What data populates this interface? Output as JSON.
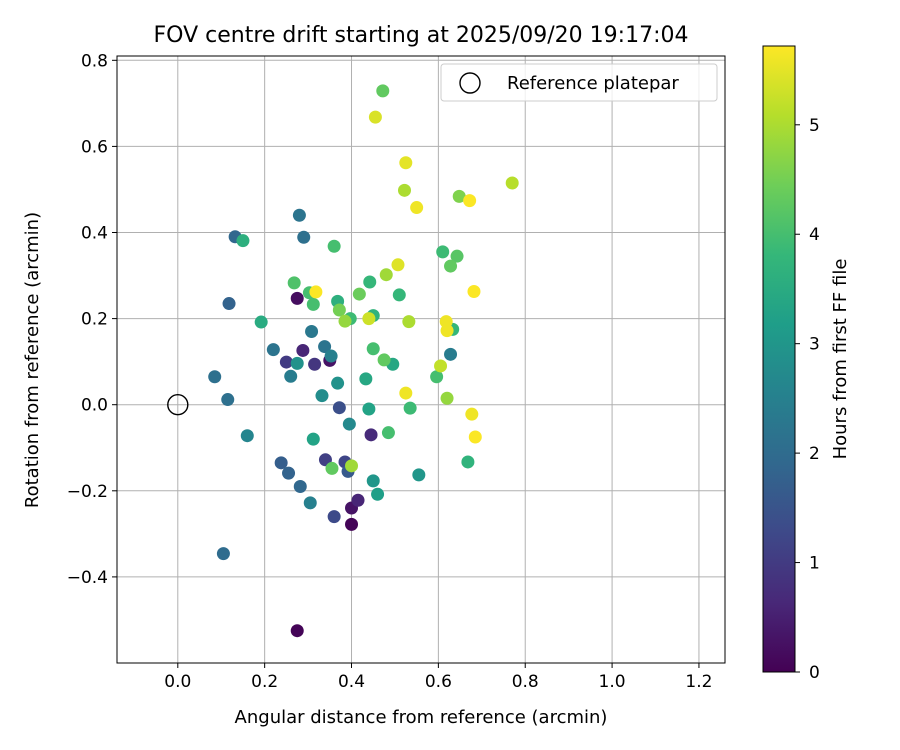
{
  "chart_data": {
    "type": "scatter",
    "title": "FOV centre drift starting at 2025/09/20 19:17:04",
    "xlabel": "Angular distance from reference (arcmin)",
    "ylabel": "Rotation from reference (arcmin)",
    "xlim": [
      -0.14,
      1.26
    ],
    "ylim": [
      -0.6,
      0.81
    ],
    "xticks": [
      0.0,
      0.2,
      0.4,
      0.6,
      0.8,
      1.0,
      1.2
    ],
    "xtick_labels": [
      "0.0",
      "0.2",
      "0.4",
      "0.6",
      "0.8",
      "1.0",
      "1.2"
    ],
    "yticks": [
      -0.4,
      -0.2,
      0.0,
      0.2,
      0.4,
      0.6,
      0.8
    ],
    "ytick_labels": [
      "−0.4",
      "−0.2",
      "0.0",
      "0.2",
      "0.4",
      "0.6",
      "0.8"
    ],
    "grid": true,
    "legend": {
      "position": "top-right",
      "label": "Reference platepar"
    },
    "reference_point": {
      "x": 0.0,
      "y": 0.0
    },
    "colorbar": {
      "label": "Hours from first FF file",
      "range": [
        0,
        5.72
      ],
      "ticks": [
        0,
        1,
        2,
        3,
        4,
        5
      ],
      "tick_labels": [
        "0",
        "1",
        "2",
        "3",
        "4",
        "5"
      ],
      "colormap": "viridis",
      "colormap_stops": [
        "#440154",
        "#482878",
        "#3e4989",
        "#31688e",
        "#26828e",
        "#1f9e89",
        "#35b779",
        "#6ece58",
        "#b5de2b",
        "#fde725"
      ]
    },
    "points": [
      {
        "x": 0.275,
        "y": -0.525,
        "t": 0.05
      },
      {
        "x": 0.4,
        "y": -0.278,
        "t": 0.05
      },
      {
        "x": 0.4,
        "y": -0.24,
        "t": 0.3
      },
      {
        "x": 0.415,
        "y": -0.222,
        "t": 0.6
      },
      {
        "x": 0.36,
        "y": -0.26,
        "t": 1.3
      },
      {
        "x": 0.275,
        "y": 0.247,
        "t": 0.2
      },
      {
        "x": 0.35,
        "y": 0.103,
        "t": 0.3
      },
      {
        "x": 0.288,
        "y": 0.126,
        "t": 0.6
      },
      {
        "x": 0.445,
        "y": -0.07,
        "t": 0.7
      },
      {
        "x": 0.315,
        "y": 0.094,
        "t": 0.9
      },
      {
        "x": 0.25,
        "y": 0.099,
        "t": 1.0
      },
      {
        "x": 0.34,
        "y": -0.128,
        "t": 1.1
      },
      {
        "x": 0.385,
        "y": -0.133,
        "t": 1.2
      },
      {
        "x": 0.372,
        "y": -0.007,
        "t": 1.4
      },
      {
        "x": 0.392,
        "y": -0.155,
        "t": 1.6
      },
      {
        "x": 0.238,
        "y": -0.135,
        "t": 1.7
      },
      {
        "x": 0.255,
        "y": -0.159,
        "t": 1.8
      },
      {
        "x": 0.282,
        "y": -0.19,
        "t": 1.9
      },
      {
        "x": 0.118,
        "y": 0.235,
        "t": 1.8
      },
      {
        "x": 0.132,
        "y": 0.39,
        "t": 1.9
      },
      {
        "x": 0.29,
        "y": 0.389,
        "t": 2.1
      },
      {
        "x": 0.28,
        "y": 0.44,
        "t": 2.2
      },
      {
        "x": 0.105,
        "y": -0.346,
        "t": 2.0
      },
      {
        "x": 0.085,
        "y": 0.065,
        "t": 2.1
      },
      {
        "x": 0.115,
        "y": 0.012,
        "t": 2.1
      },
      {
        "x": 0.22,
        "y": 0.128,
        "t": 2.2
      },
      {
        "x": 0.338,
        "y": 0.135,
        "t": 2.2
      },
      {
        "x": 0.308,
        "y": 0.17,
        "t": 2.3
      },
      {
        "x": 0.26,
        "y": 0.066,
        "t": 2.4
      },
      {
        "x": 0.628,
        "y": 0.117,
        "t": 2.4
      },
      {
        "x": 0.353,
        "y": 0.113,
        "t": 2.5
      },
      {
        "x": 0.305,
        "y": -0.228,
        "t": 2.5
      },
      {
        "x": 0.16,
        "y": -0.072,
        "t": 2.6
      },
      {
        "x": 0.395,
        "y": -0.045,
        "t": 2.7
      },
      {
        "x": 0.332,
        "y": 0.021,
        "t": 2.8
      },
      {
        "x": 0.275,
        "y": 0.096,
        "t": 2.9
      },
      {
        "x": 0.368,
        "y": 0.05,
        "t": 2.9
      },
      {
        "x": 0.45,
        "y": -0.177,
        "t": 3.0
      },
      {
        "x": 0.46,
        "y": -0.208,
        "t": 3.2
      },
      {
        "x": 0.555,
        "y": -0.163,
        "t": 3.0
      },
      {
        "x": 0.312,
        "y": -0.08,
        "t": 3.3
      },
      {
        "x": 0.44,
        "y": -0.01,
        "t": 3.3
      },
      {
        "x": 0.433,
        "y": 0.06,
        "t": 3.4
      },
      {
        "x": 0.495,
        "y": 0.094,
        "t": 3.4
      },
      {
        "x": 0.15,
        "y": 0.381,
        "t": 3.6
      },
      {
        "x": 0.192,
        "y": 0.192,
        "t": 3.5
      },
      {
        "x": 0.368,
        "y": 0.24,
        "t": 3.6
      },
      {
        "x": 0.45,
        "y": 0.207,
        "t": 3.7
      },
      {
        "x": 0.442,
        "y": 0.285,
        "t": 3.8
      },
      {
        "x": 0.51,
        "y": 0.255,
        "t": 3.8
      },
      {
        "x": 0.397,
        "y": 0.2,
        "t": 3.9
      },
      {
        "x": 0.312,
        "y": 0.233,
        "t": 4.0
      },
      {
        "x": 0.303,
        "y": 0.26,
        "t": 4.0
      },
      {
        "x": 0.268,
        "y": 0.283,
        "t": 4.1
      },
      {
        "x": 0.36,
        "y": 0.368,
        "t": 4.0
      },
      {
        "x": 0.45,
        "y": 0.13,
        "t": 4.0
      },
      {
        "x": 0.485,
        "y": -0.065,
        "t": 4.0
      },
      {
        "x": 0.535,
        "y": -0.008,
        "t": 3.9
      },
      {
        "x": 0.668,
        "y": -0.133,
        "t": 3.7
      },
      {
        "x": 0.61,
        "y": 0.355,
        "t": 3.9
      },
      {
        "x": 0.633,
        "y": 0.175,
        "t": 3.8
      },
      {
        "x": 0.596,
        "y": 0.065,
        "t": 4.0
      },
      {
        "x": 0.643,
        "y": 0.345,
        "t": 4.2
      },
      {
        "x": 0.628,
        "y": 0.322,
        "t": 4.3
      },
      {
        "x": 0.472,
        "y": 0.729,
        "t": 4.3
      },
      {
        "x": 0.475,
        "y": 0.104,
        "t": 4.3
      },
      {
        "x": 0.355,
        "y": -0.148,
        "t": 4.3
      },
      {
        "x": 0.418,
        "y": 0.257,
        "t": 4.4
      },
      {
        "x": 0.372,
        "y": 0.22,
        "t": 4.5
      },
      {
        "x": 0.648,
        "y": 0.484,
        "t": 4.6
      },
      {
        "x": 0.62,
        "y": 0.015,
        "t": 4.8
      },
      {
        "x": 0.385,
        "y": 0.194,
        "t": 4.8
      },
      {
        "x": 0.4,
        "y": -0.142,
        "t": 4.9
      },
      {
        "x": 0.48,
        "y": 0.302,
        "t": 4.9
      },
      {
        "x": 0.522,
        "y": 0.498,
        "t": 5.0
      },
      {
        "x": 0.532,
        "y": 0.193,
        "t": 5.0
      },
      {
        "x": 0.77,
        "y": 0.515,
        "t": 5.1
      },
      {
        "x": 0.605,
        "y": 0.09,
        "t": 5.2
      },
      {
        "x": 0.44,
        "y": 0.2,
        "t": 5.3
      },
      {
        "x": 0.455,
        "y": 0.668,
        "t": 5.4
      },
      {
        "x": 0.507,
        "y": 0.325,
        "t": 5.45
      },
      {
        "x": 0.525,
        "y": 0.562,
        "t": 5.5
      },
      {
        "x": 0.55,
        "y": 0.458,
        "t": 5.6
      },
      {
        "x": 0.525,
        "y": 0.027,
        "t": 5.6
      },
      {
        "x": 0.618,
        "y": 0.193,
        "t": 5.6
      },
      {
        "x": 0.62,
        "y": 0.172,
        "t": 5.6
      },
      {
        "x": 0.677,
        "y": -0.022,
        "t": 5.6
      },
      {
        "x": 0.685,
        "y": -0.075,
        "t": 5.7
      },
      {
        "x": 0.682,
        "y": 0.263,
        "t": 5.7
      },
      {
        "x": 0.672,
        "y": 0.474,
        "t": 5.7
      },
      {
        "x": 0.318,
        "y": 0.262,
        "t": 5.7
      }
    ]
  }
}
